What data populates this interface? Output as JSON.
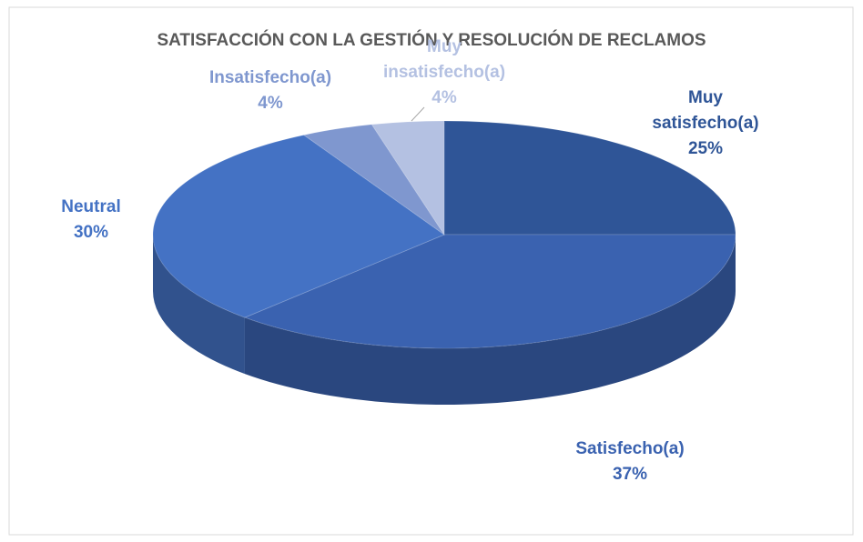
{
  "chart_data": {
    "type": "pie",
    "title": "SATISFACCIÓN CON LA GESTIÓN Y RESOLUCIÓN DE RECLAMOS",
    "categories": [
      "Muy satisfecho(a)",
      "Satisfecho(a)",
      "Neutral",
      "Insatisfecho(a)",
      "Muy insatisfecho(a)"
    ],
    "values": [
      25,
      37,
      30,
      4,
      4
    ],
    "value_labels": [
      "25%",
      "37%",
      "30%",
      "4%",
      "4%"
    ],
    "colors": [
      "#2f5597",
      "#3a62b0",
      "#4472c4",
      "#7f97cf",
      "#b4c1e2"
    ]
  }
}
